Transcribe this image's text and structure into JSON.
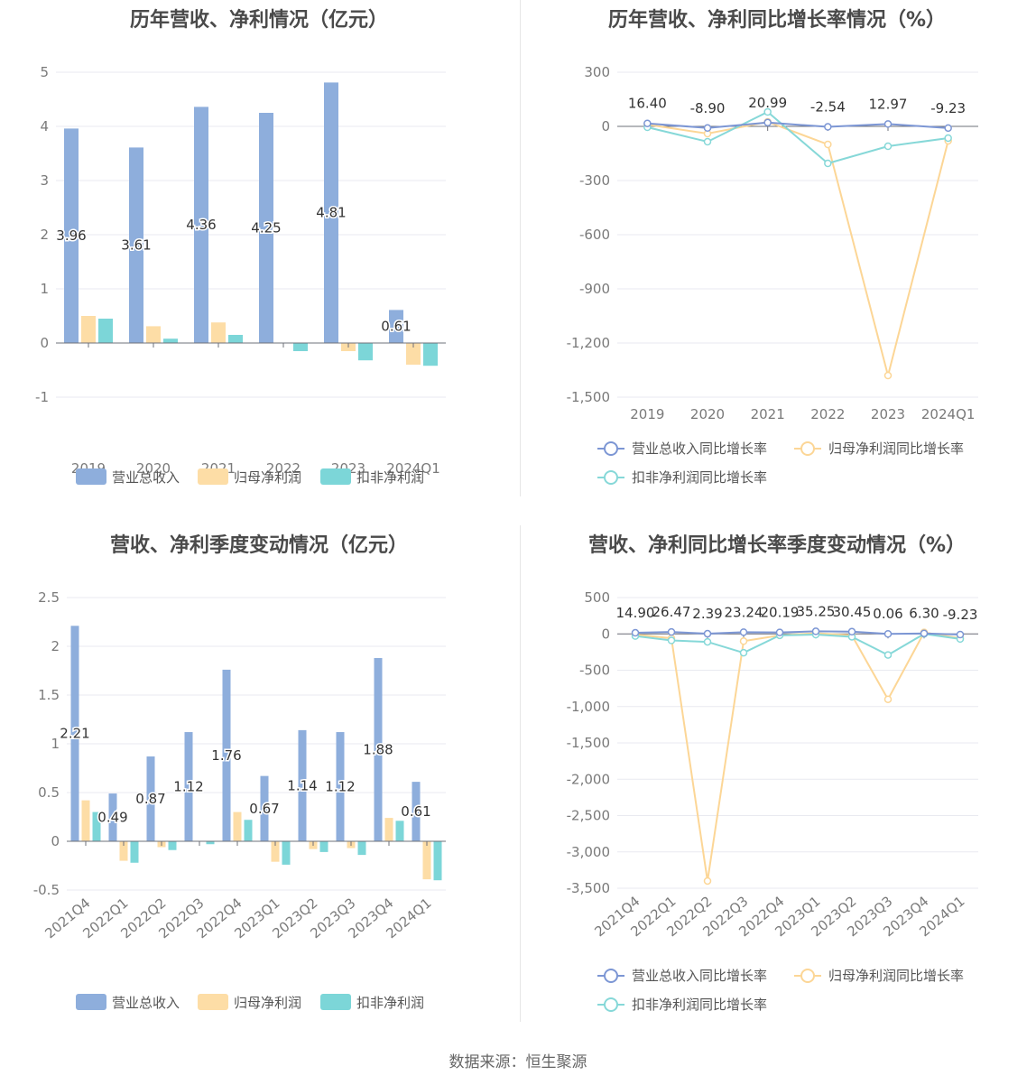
{
  "source": "数据来源：恒生聚源",
  "colors": {
    "revenue": "#8eaedc",
    "parent_profit": "#fddda6",
    "deducted_profit": "#7cd6d8",
    "revenue_line": "#7c96d4",
    "parent_line": "#fcd696",
    "deducted_line": "#86d8d8"
  },
  "chart_data": [
    {
      "id": "annual_bar",
      "type": "bar",
      "title": "历年营收、净利情况（亿元）",
      "categories": [
        "2019",
        "2020",
        "2021",
        "2022",
        "2023",
        "2024Q1"
      ],
      "series": [
        {
          "name": "营业总收入",
          "values": [
            3.96,
            3.61,
            4.36,
            4.25,
            4.81,
            0.61
          ],
          "labels": [
            "3.96",
            "3.61",
            "4.36",
            "4.25",
            "4.81",
            "0.61"
          ]
        },
        {
          "name": "归母净利润",
          "values": [
            0.5,
            0.31,
            0.38,
            0.0,
            -0.15,
            -0.4
          ]
        },
        {
          "name": "扣非净利润",
          "values": [
            0.45,
            0.08,
            0.15,
            -0.15,
            -0.32,
            -0.42
          ]
        }
      ],
      "ylim": [
        -1,
        5
      ],
      "yticks": [
        "-1",
        "0",
        "1",
        "2",
        "3",
        "4",
        "5"
      ],
      "grid": true,
      "legend": "bottom"
    },
    {
      "id": "annual_growth",
      "type": "line",
      "title": "历年营收、净利同比增长率情况（%）",
      "categories": [
        "2019",
        "2020",
        "2021",
        "2022",
        "2023",
        "2024Q1"
      ],
      "series": [
        {
          "name": "营业总收入同比增长率",
          "values": [
            16.4,
            -8.9,
            20.99,
            -2.54,
            12.97,
            -9.23
          ],
          "labels": [
            "16.40",
            "-8.90",
            "20.99",
            "-2.54",
            "12.97",
            "-9.23"
          ]
        },
        {
          "name": "归母净利润同比增长率",
          "values": [
            10,
            -40,
            25,
            -100,
            -1380,
            -80
          ]
        },
        {
          "name": "扣非净利润同比增长率",
          "values": [
            -5,
            -85,
            80,
            -205,
            -110,
            -65
          ]
        }
      ],
      "ylim": [
        -1500,
        300
      ],
      "yticks": [
        "-1,500",
        "-1,200",
        "-900",
        "-600",
        "-300",
        "0",
        "300"
      ],
      "grid": true,
      "legend": "bottom"
    },
    {
      "id": "quarterly_bar",
      "type": "bar",
      "title": "营收、净利季度变动情况（亿元）",
      "categories": [
        "2021Q4",
        "2022Q1",
        "2022Q2",
        "2022Q3",
        "2022Q4",
        "2023Q1",
        "2023Q2",
        "2023Q3",
        "2023Q4",
        "2024Q1"
      ],
      "series": [
        {
          "name": "营业总收入",
          "values": [
            2.21,
            0.49,
            0.87,
            1.12,
            1.76,
            0.67,
            1.14,
            1.12,
            1.88,
            0.61
          ],
          "labels": [
            "2.21",
            "0.49",
            "0.87",
            "1.12",
            "1.76",
            "0.67",
            "1.14",
            "1.12",
            "1.88",
            "0.61"
          ]
        },
        {
          "name": "归母净利润",
          "values": [
            0.42,
            -0.2,
            -0.06,
            0.0,
            0.3,
            -0.21,
            -0.08,
            -0.07,
            0.24,
            -0.39
          ]
        },
        {
          "name": "扣非净利润",
          "values": [
            0.3,
            -0.22,
            -0.09,
            -0.03,
            0.22,
            -0.24,
            -0.11,
            -0.14,
            0.21,
            -0.4
          ]
        }
      ],
      "ylim": [
        -0.5,
        2.5
      ],
      "yticks": [
        "-0.5",
        "0",
        "0.5",
        "1",
        "1.5",
        "2",
        "2.5"
      ],
      "grid": true,
      "legend": "bottom"
    },
    {
      "id": "quarterly_growth",
      "type": "line",
      "title": "营收、净利同比增长率季度变动情况（%）",
      "categories": [
        "2021Q4",
        "2022Q1",
        "2022Q2",
        "2022Q3",
        "2022Q4",
        "2023Q1",
        "2023Q2",
        "2023Q3",
        "2023Q4",
        "2024Q1"
      ],
      "series": [
        {
          "name": "营业总收入同比增长率",
          "values": [
            14.9,
            26.47,
            2.39,
            23.24,
            20.19,
            35.25,
            30.45,
            0.06,
            6.3,
            -9.23
          ],
          "labels": [
            "14.90",
            "26.47",
            "2.39",
            "23.24",
            "20.19",
            "35.25",
            "30.45",
            "0.06",
            "6.30",
            "-9.23"
          ]
        },
        {
          "name": "归母净利润同比增长率",
          "values": [
            -10,
            -60,
            -3400,
            -100,
            -20,
            10,
            -20,
            -900,
            20,
            -60
          ]
        },
        {
          "name": "扣非净利润同比增长率",
          "values": [
            -30,
            -90,
            -110,
            -260,
            -20,
            -10,
            -40,
            -290,
            0,
            -70
          ]
        }
      ],
      "ylim": [
        -3500,
        500
      ],
      "yticks": [
        "-3,500",
        "-3,000",
        "-2,500",
        "-2,000",
        "-1,500",
        "-1,000",
        "-500",
        "0",
        "500"
      ],
      "grid": true,
      "legend": "bottom"
    }
  ]
}
